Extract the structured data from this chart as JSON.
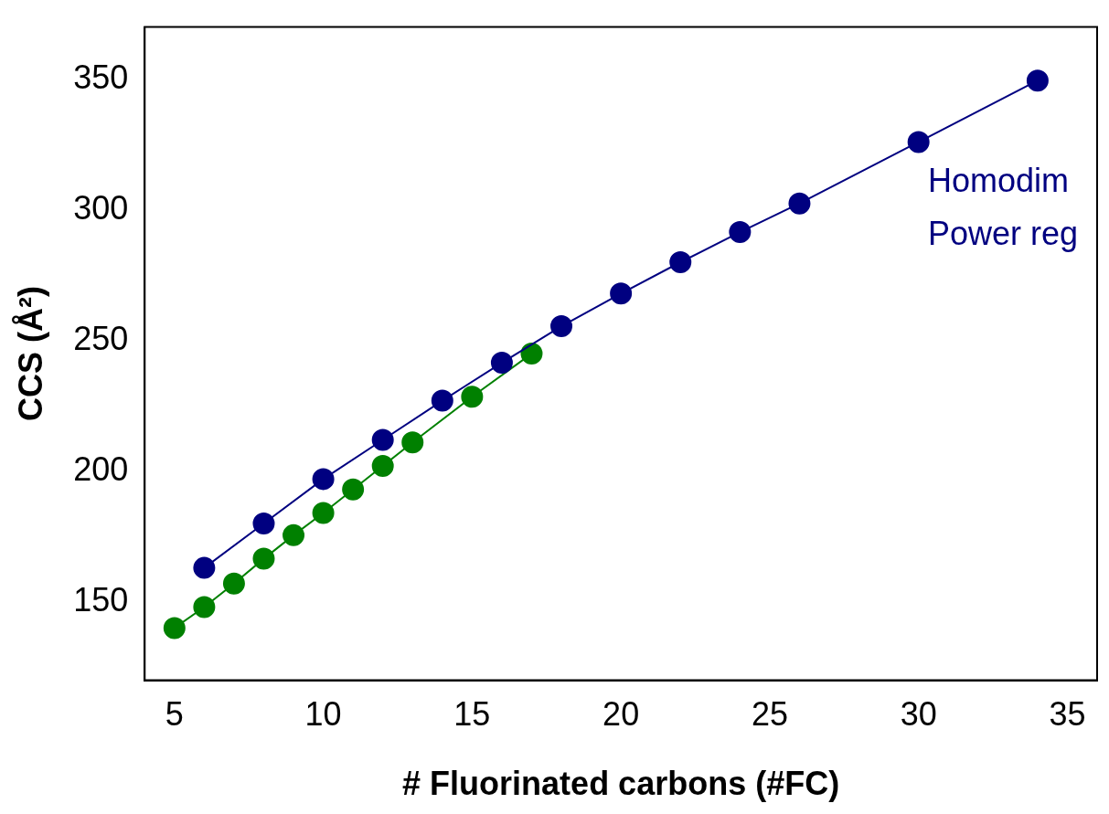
{
  "chart_data": {
    "type": "line",
    "xlabel": "# Fluorinated carbons (#FC)",
    "ylabel": "CCS (Å²)",
    "xlim": [
      4,
      36
    ],
    "xticks": [
      5,
      10,
      15,
      20,
      25,
      30,
      35
    ],
    "ylim": [
      120,
      370
    ],
    "yticks": [
      150,
      200,
      250,
      300,
      350
    ],
    "grid": false,
    "legend": false,
    "marker": "circle",
    "line_style": "solid",
    "annotations": [
      "Homodim",
      "Power reg"
    ],
    "series": [
      {
        "color": "#000080",
        "x": [
          6,
          8,
          10,
          12,
          14,
          16,
          18,
          20,
          22,
          24,
          26,
          30,
          34
        ],
        "values": [
          163,
          180,
          197,
          212,
          227,
          241.5,
          255.5,
          268,
          280,
          291.5,
          302.5,
          326,
          349.5
        ]
      },
      {
        "color": "#008000",
        "x": [
          5,
          6,
          7,
          8,
          9,
          10,
          11,
          12,
          13,
          15,
          17
        ],
        "values": [
          140,
          148,
          157,
          166.5,
          175.5,
          184,
          193,
          202,
          211,
          228.5,
          245
        ]
      }
    ]
  }
}
